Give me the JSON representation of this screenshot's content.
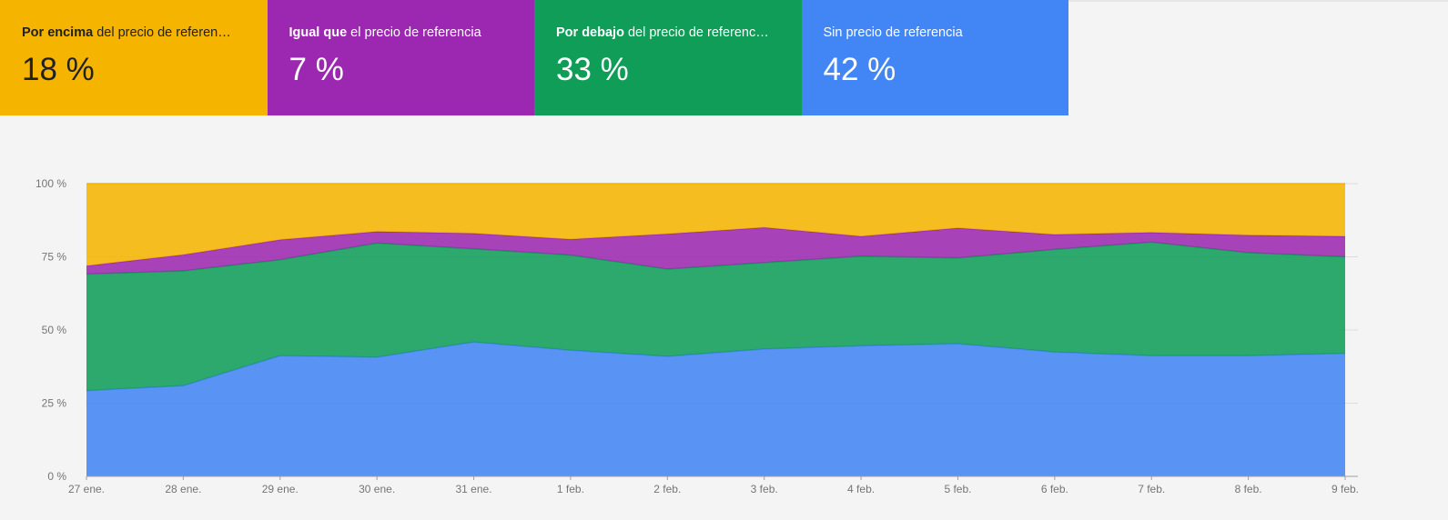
{
  "cards": [
    {
      "bold": "Por encima",
      "rest": " del precio de referen…",
      "value": "18 %"
    },
    {
      "bold": "Igual que",
      "rest": " el precio de referencia",
      "value": "7 %"
    },
    {
      "bold": "Por debajo",
      "rest": " del precio de referenc…",
      "value": "33 %"
    },
    {
      "bold": "",
      "rest": "Sin precio de referencia",
      "value": "42 %"
    }
  ],
  "colors": {
    "above": "#f5b400",
    "equal": "#9c27b0",
    "below": "#0f9d58",
    "none": "#4285f4"
  },
  "chart_data": {
    "type": "area",
    "stacked": true,
    "title": "",
    "xlabel": "",
    "ylabel": "",
    "ylim": [
      0,
      100
    ],
    "grid": true,
    "yticks": [
      "0 %",
      "25 %",
      "50 %",
      "75 %",
      "100 %"
    ],
    "categories": [
      "27 ene.",
      "28 ene.",
      "29 ene.",
      "30 ene.",
      "31 ene.",
      "1 feb.",
      "2 feb.",
      "3 feb.",
      "4 feb.",
      "5 feb.",
      "6 feb.",
      "7 feb.",
      "8 feb.",
      "9 feb."
    ],
    "series": [
      {
        "key": "none",
        "values": [
          29.3,
          31,
          41.2,
          40.7,
          45.9,
          43.1,
          41,
          43.5,
          44.6,
          45.3,
          42.5,
          41.2,
          41.2,
          42
        ]
      },
      {
        "key": "below",
        "values": [
          39.8,
          39.2,
          32.8,
          39,
          31.8,
          32.5,
          29.8,
          29.5,
          30.6,
          29.3,
          35,
          38.8,
          35.2,
          33
        ]
      },
      {
        "key": "equal",
        "values": [
          2.8,
          5.5,
          6.8,
          3.9,
          5.3,
          5.4,
          12,
          12,
          6.8,
          10.2,
          5.1,
          3.3,
          6,
          7
        ]
      },
      {
        "key": "above",
        "values": [
          28.1,
          24.3,
          19.2,
          16.4,
          17,
          19,
          17.2,
          15,
          18,
          15.2,
          17.4,
          16.7,
          17.6,
          18
        ]
      }
    ]
  }
}
